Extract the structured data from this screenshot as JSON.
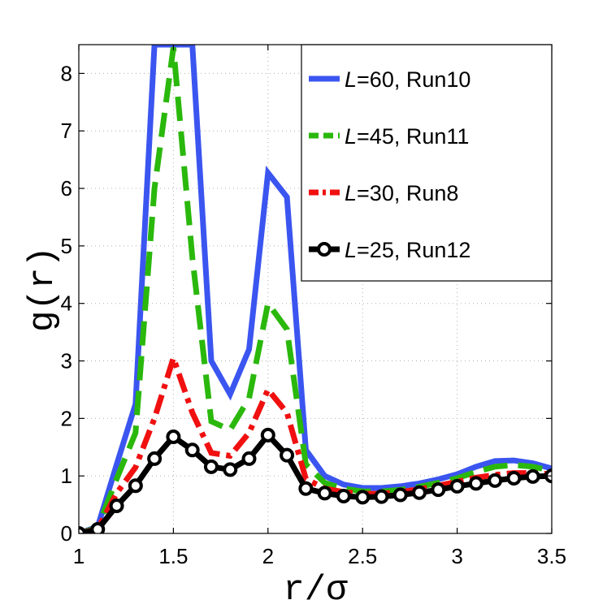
{
  "chart_data": {
    "type": "line",
    "xlabel": "r/σ",
    "ylabel": "g(r)",
    "xlim": [
      1,
      3.5
    ],
    "ylim": [
      0,
      8.5
    ],
    "xticks": [
      "1",
      "1.5",
      "2",
      "2.5",
      "3",
      "3.5"
    ],
    "yticks": [
      "0",
      "1",
      "2",
      "3",
      "4",
      "5",
      "6",
      "7",
      "8"
    ],
    "grid": true,
    "legend_position": "top-right",
    "series": [
      {
        "name_italic": "L",
        "name_rest": "=60, Run10",
        "color": "#3b55f0",
        "style": "solid",
        "x": [
          1.0,
          1.1,
          1.2,
          1.3,
          1.4,
          1.5,
          1.6,
          1.7,
          1.8,
          1.9,
          2.0,
          2.1,
          2.2,
          2.3,
          2.4,
          2.5,
          2.6,
          2.7,
          2.8,
          2.9,
          3.0,
          3.1,
          3.2,
          3.3,
          3.4,
          3.5
        ],
        "y": [
          0.0,
          0.12,
          1.2,
          2.25,
          8.5,
          8.5,
          8.5,
          3.0,
          2.42,
          3.2,
          6.27,
          5.85,
          1.45,
          1.0,
          0.85,
          0.79,
          0.79,
          0.82,
          0.87,
          0.94,
          1.03,
          1.16,
          1.26,
          1.27,
          1.22,
          1.13
        ]
      },
      {
        "name_italic": "L",
        "name_rest": "=45, Run11",
        "color": "#2ab80c",
        "style": "dashed",
        "x": [
          1.0,
          1.1,
          1.2,
          1.3,
          1.4,
          1.5,
          1.6,
          1.7,
          1.8,
          1.9,
          2.0,
          2.1,
          2.2,
          2.3,
          2.4,
          2.5,
          2.6,
          2.7,
          2.8,
          2.9,
          3.0,
          3.1,
          3.2,
          3.3,
          3.4,
          3.5
        ],
        "y": [
          0.0,
          0.1,
          0.95,
          1.75,
          6.0,
          8.45,
          4.8,
          1.95,
          1.8,
          2.35,
          4.0,
          3.55,
          1.2,
          0.88,
          0.78,
          0.73,
          0.73,
          0.76,
          0.81,
          0.88,
          0.96,
          1.07,
          1.16,
          1.19,
          1.16,
          1.09
        ]
      },
      {
        "name_italic": "L",
        "name_rest": "=30, Run8",
        "color": "#f01010",
        "style": "dashdot",
        "x": [
          1.0,
          1.1,
          1.2,
          1.3,
          1.4,
          1.5,
          1.6,
          1.7,
          1.8,
          1.9,
          2.0,
          2.1,
          2.2,
          2.3,
          2.4,
          2.5,
          2.6,
          2.7,
          2.8,
          2.9,
          3.0,
          3.1,
          3.2,
          3.3,
          3.4,
          3.5
        ],
        "y": [
          0.0,
          0.08,
          0.7,
          1.15,
          2.0,
          3.05,
          2.1,
          1.4,
          1.35,
          1.75,
          2.5,
          2.1,
          0.95,
          0.78,
          0.72,
          0.69,
          0.69,
          0.72,
          0.77,
          0.83,
          0.9,
          0.97,
          1.02,
          1.05,
          1.05,
          1.03
        ]
      },
      {
        "name_italic": "L",
        "name_rest": "=25, Run12",
        "color": "#000000",
        "style": "solid-circles",
        "x": [
          1.0,
          1.1,
          1.2,
          1.3,
          1.4,
          1.5,
          1.6,
          1.7,
          1.8,
          1.9,
          2.0,
          2.1,
          2.2,
          2.3,
          2.4,
          2.5,
          2.6,
          2.7,
          2.8,
          2.9,
          3.0,
          3.1,
          3.2,
          3.3,
          3.4,
          3.5
        ],
        "y": [
          0.0,
          0.07,
          0.48,
          0.83,
          1.3,
          1.68,
          1.45,
          1.16,
          1.11,
          1.3,
          1.71,
          1.36,
          0.78,
          0.7,
          0.65,
          0.63,
          0.64,
          0.67,
          0.71,
          0.76,
          0.82,
          0.87,
          0.92,
          0.96,
          0.99,
          1.0
        ]
      }
    ]
  }
}
